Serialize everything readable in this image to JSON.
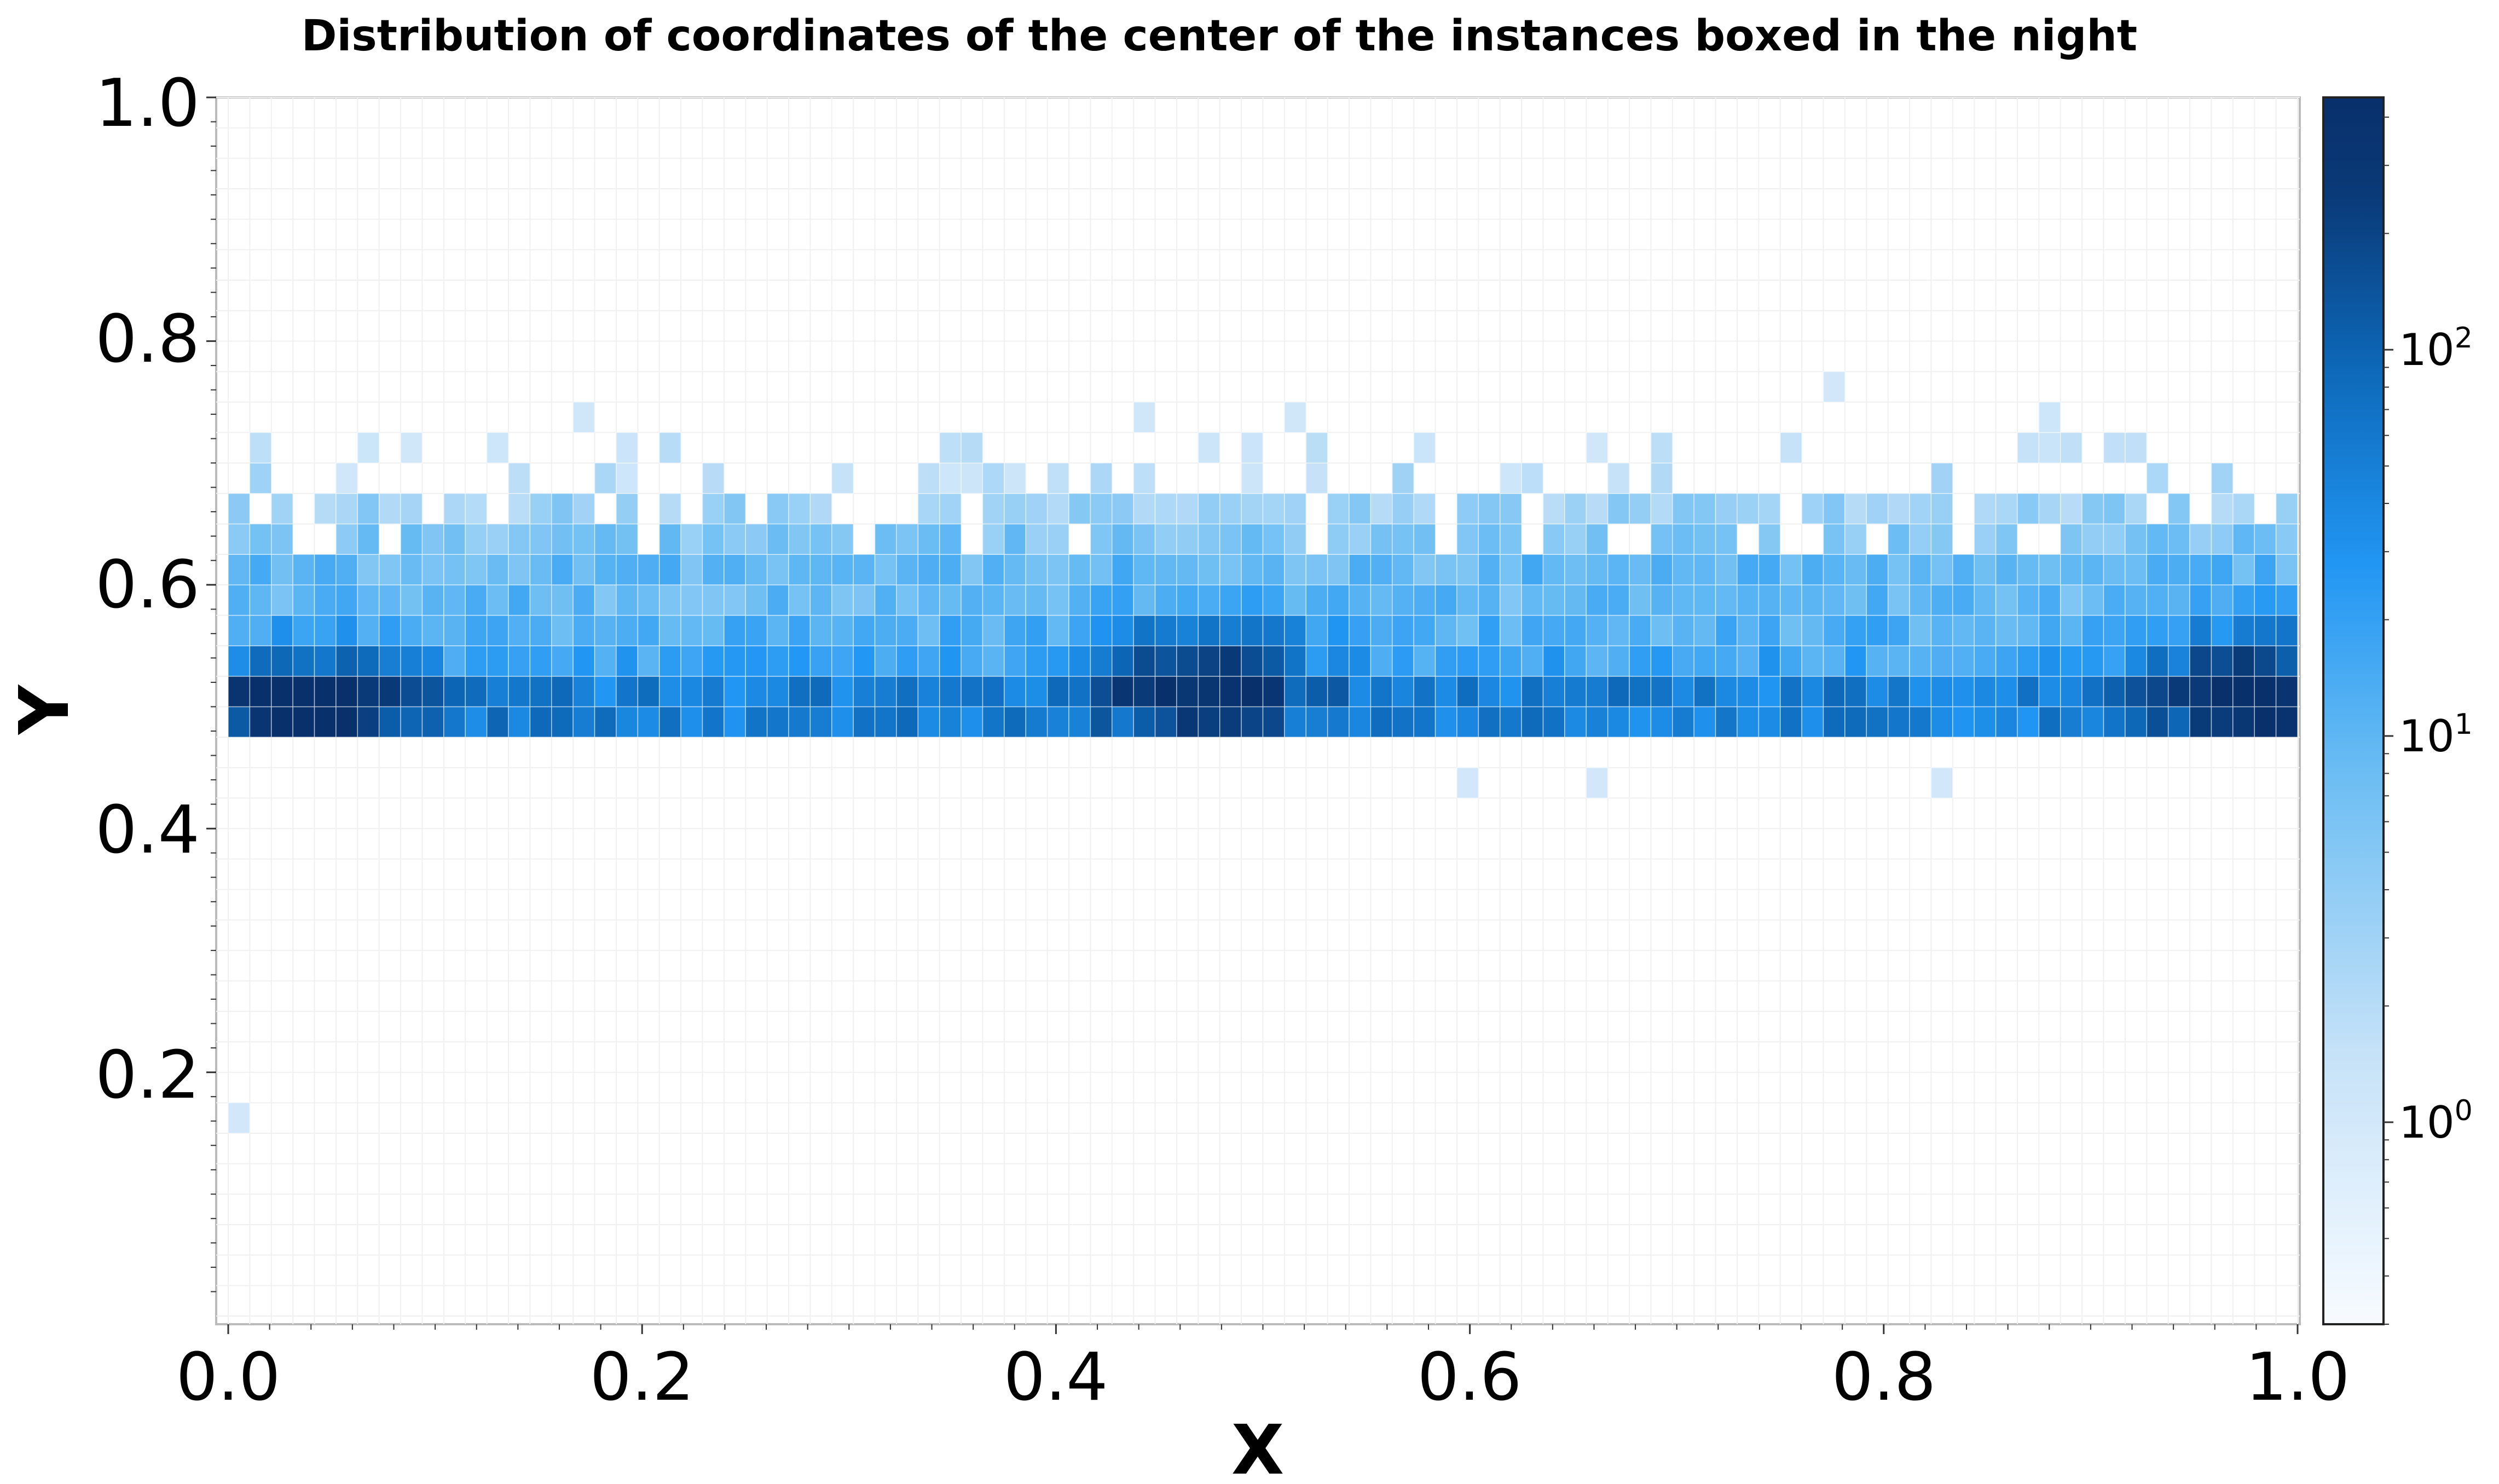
{
  "chart_data": {
    "type": "heatmap",
    "title": "Distribution of coordinates of the center of the instances boxed in the night",
    "xlabel": "X",
    "ylabel": "Y",
    "xlim": [
      0.0,
      1.0
    ],
    "ylim": [
      0.0,
      1.0
    ],
    "x_ticks": [
      "0.0",
      "0.2",
      "0.4",
      "0.6",
      "0.8",
      "1.0"
    ],
    "y_ticks": [
      "0.2",
      "0.4",
      "0.6",
      "0.8",
      "1.0"
    ],
    "grid": true,
    "colormap": [
      "#f7fbff",
      "#c6e2f8",
      "#6bbdf3",
      "#2196f3",
      "#0d68b8",
      "#0a3a78",
      "#08306b"
    ],
    "colorbar": {
      "scale": "log",
      "range": [
        0.3,
        450
      ],
      "ticks": [
        {
          "base": "10",
          "exp": "0",
          "value": 1
        },
        {
          "base": "10",
          "exp": "1",
          "value": 10
        },
        {
          "base": "10",
          "exp": "2",
          "value": 100
        }
      ]
    },
    "bins": {
      "x_edges": [
        0.0,
        1.0
      ],
      "x_count": 96,
      "y_edges": [
        0.0,
        1.0
      ],
      "y_count": 40
    },
    "density_summary": {
      "main_band_y": [
        0.47,
        0.61
      ],
      "peak_row_y": [
        0.49,
        0.51
      ],
      "peak_counts": [
        {
          "x": 0.04,
          "y": 0.5,
          "count": 300
        },
        {
          "x": 0.47,
          "y": 0.53,
          "count": 350
        },
        {
          "x": 0.98,
          "y": 0.52,
          "count": 450
        }
      ],
      "sparse_region_y": [
        0.61,
        0.76
      ],
      "outliers": [
        {
          "x": 0.01,
          "y": 0.15,
          "count": 1
        },
        {
          "x": 0.6,
          "y": 0.44,
          "count": 1
        },
        {
          "x": 0.66,
          "y": 0.44,
          "count": 1
        },
        {
          "x": 0.83,
          "y": 0.44,
          "count": 1
        },
        {
          "x": 0.78,
          "y": 0.75,
          "count": 1
        }
      ]
    }
  }
}
